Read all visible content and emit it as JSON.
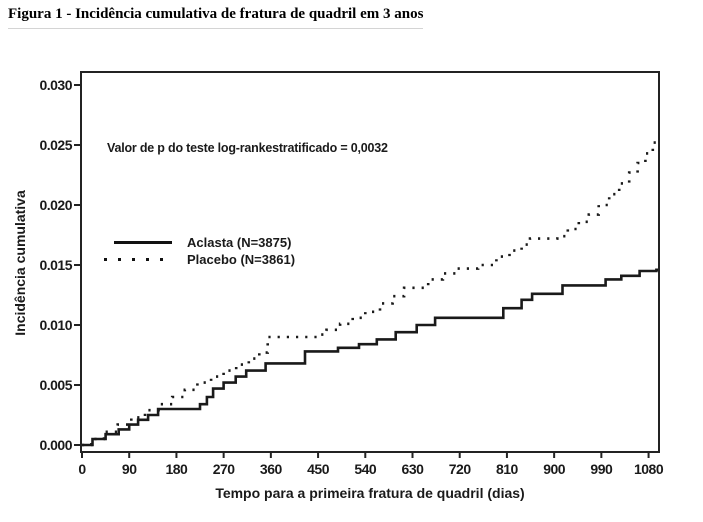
{
  "figure_title": "Figura 1 - Incidência cumulativa de fratura de quadril em 3 anos",
  "chart_data": {
    "type": "line",
    "subtype": "kaplan-meier-step",
    "title": "Figura 1 - Incidência cumulativa de fratura de quadril em 3 anos",
    "xlabel": "Tempo para a primeira fratura de quadril (dias)",
    "ylabel": "Incidência cumulativa",
    "annotation": "Valor de p do teste log-rankestratificado = 0,0032",
    "xlim": [
      0,
      1100
    ],
    "ylim": [
      0,
      0.03
    ],
    "xticks": [
      0,
      90,
      180,
      270,
      360,
      450,
      540,
      630,
      720,
      810,
      900,
      990,
      1080
    ],
    "yticks": [
      0,
      0.005,
      0.01,
      0.015,
      0.02,
      0.025,
      0.03
    ],
    "ytick_labels": [
      "0.000",
      "0.005",
      "0.010",
      "0.015",
      "0.020",
      "0.025",
      "0.030"
    ],
    "grid": false,
    "legend_position": "inside-upper-left",
    "line_color": "#1a1a1a",
    "series": [
      {
        "name": "Aclasta (N=3875)",
        "line_style": "solid",
        "points": [
          [
            0,
            0.0
          ],
          [
            20,
            0.0005
          ],
          [
            45,
            0.0009
          ],
          [
            70,
            0.0013
          ],
          [
            90,
            0.0017
          ],
          [
            107,
            0.0021
          ],
          [
            126,
            0.0025
          ],
          [
            145,
            0.003
          ],
          [
            225,
            0.0034
          ],
          [
            238,
            0.004
          ],
          [
            250,
            0.0047
          ],
          [
            270,
            0.0052
          ],
          [
            293,
            0.0057
          ],
          [
            313,
            0.0062
          ],
          [
            350,
            0.0068
          ],
          [
            425,
            0.0078
          ],
          [
            488,
            0.0081
          ],
          [
            528,
            0.0084
          ],
          [
            562,
            0.0088
          ],
          [
            598,
            0.0094
          ],
          [
            638,
            0.01
          ],
          [
            673,
            0.0106
          ],
          [
            803,
            0.0114
          ],
          [
            838,
            0.0121
          ],
          [
            858,
            0.0126
          ],
          [
            916,
            0.0133
          ],
          [
            998,
            0.0138
          ],
          [
            1028,
            0.0141
          ],
          [
            1063,
            0.0145
          ],
          [
            1095,
            0.0146
          ]
        ]
      },
      {
        "name": "Placebo (N=3861)",
        "line_style": "dotted",
        "points": [
          [
            0,
            0.0
          ],
          [
            18,
            0.0005
          ],
          [
            42,
            0.0011
          ],
          [
            68,
            0.0017
          ],
          [
            94,
            0.0023
          ],
          [
            120,
            0.0029
          ],
          [
            146,
            0.0034
          ],
          [
            172,
            0.004
          ],
          [
            196,
            0.0046
          ],
          [
            220,
            0.0052
          ],
          [
            246,
            0.0057
          ],
          [
            270,
            0.0062
          ],
          [
            294,
            0.0067
          ],
          [
            318,
            0.0072
          ],
          [
            338,
            0.0077
          ],
          [
            354,
            0.009
          ],
          [
            452,
            0.0092
          ],
          [
            466,
            0.0096
          ],
          [
            492,
            0.0101
          ],
          [
            516,
            0.0106
          ],
          [
            540,
            0.0111
          ],
          [
            568,
            0.0118
          ],
          [
            592,
            0.0124
          ],
          [
            614,
            0.0131
          ],
          [
            660,
            0.0138
          ],
          [
            688,
            0.0143
          ],
          [
            715,
            0.0147
          ],
          [
            755,
            0.015
          ],
          [
            790,
            0.0157
          ],
          [
            815,
            0.0162
          ],
          [
            838,
            0.0167
          ],
          [
            854,
            0.0172
          ],
          [
            906,
            0.0174
          ],
          [
            926,
            0.018
          ],
          [
            947,
            0.0186
          ],
          [
            966,
            0.0192
          ],
          [
            985,
            0.02
          ],
          [
            1005,
            0.0209
          ],
          [
            1024,
            0.0218
          ],
          [
            1043,
            0.0227
          ],
          [
            1059,
            0.0235
          ],
          [
            1074,
            0.0243
          ],
          [
            1088,
            0.0252
          ]
        ]
      }
    ]
  }
}
